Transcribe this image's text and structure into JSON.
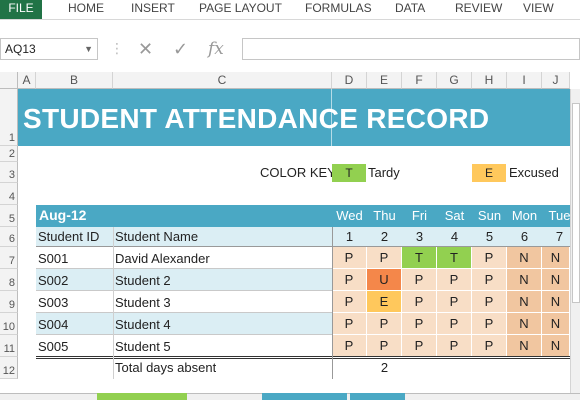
{
  "ribbon": {
    "tabs": [
      "FILE",
      "HOME",
      "INSERT",
      "PAGE LAYOUT",
      "FORMULAS",
      "DATA",
      "REVIEW",
      "VIEW"
    ]
  },
  "formula_bar": {
    "name_box": "AQ13",
    "cancel_icon": "close-icon",
    "enter_icon": "check-icon",
    "fx_label": "fx",
    "content": ""
  },
  "columns": [
    "A",
    "B",
    "C",
    "D",
    "E",
    "F",
    "G",
    "H",
    "I",
    "J"
  ],
  "rows": [
    "1",
    "2",
    "3",
    "4",
    "5",
    "6",
    "7",
    "8",
    "9",
    "10",
    "11",
    "12"
  ],
  "sheet": {
    "title": "STUDENT ATTENDANCE RECORD",
    "color_key_label": "COLOR KEY",
    "key_tardy_code": "T",
    "key_tardy_label": "Tardy",
    "key_excused_code": "E",
    "key_excused_label": "Excused",
    "month": "Aug-12",
    "header_id": "Student ID",
    "header_name": "Student Name",
    "days": [
      "Wed",
      "Thu",
      "Fri",
      "Sat",
      "Sun",
      "Mon",
      "Tue"
    ],
    "dates": [
      "1",
      "2",
      "3",
      "4",
      "5",
      "6",
      "7"
    ],
    "students": [
      {
        "id": "S001",
        "name": "David Alexander",
        "marks": [
          "P",
          "P",
          "T",
          "T",
          "P",
          "N",
          "N"
        ]
      },
      {
        "id": "S002",
        "name": "Student 2",
        "marks": [
          "P",
          "U",
          "P",
          "P",
          "P",
          "N",
          "N"
        ]
      },
      {
        "id": "S003",
        "name": "Student 3",
        "marks": [
          "P",
          "E",
          "P",
          "P",
          "P",
          "N",
          "N"
        ]
      },
      {
        "id": "S004",
        "name": "Student 4",
        "marks": [
          "P",
          "P",
          "P",
          "P",
          "P",
          "N",
          "N"
        ]
      },
      {
        "id": "S005",
        "name": "Student 5",
        "marks": [
          "P",
          "P",
          "P",
          "P",
          "P",
          "N",
          "N"
        ]
      }
    ],
    "total_label": "Total days absent",
    "total_values": [
      "",
      "2",
      "",
      "",
      "",
      "",
      ""
    ]
  },
  "colors": {
    "banner": "#4aa8c4",
    "tardy": "#92d050",
    "excused": "#ffc85c",
    "unexcused": "#f4874a",
    "present": "#f8dec6",
    "weekend_n": "#f1c6a0",
    "excel_green": "#217346"
  }
}
